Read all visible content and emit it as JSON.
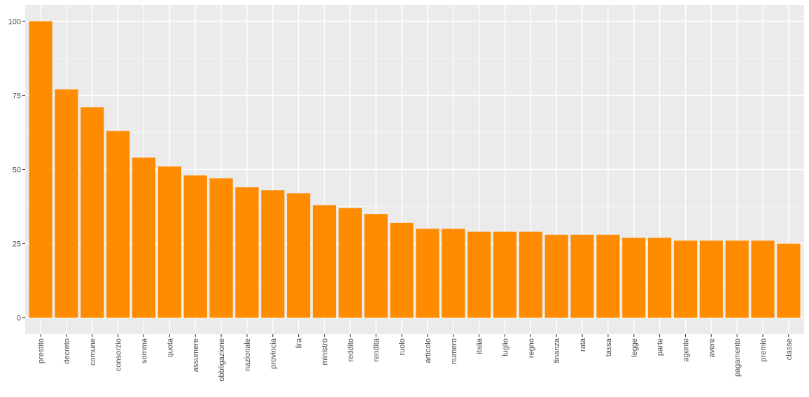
{
  "chart_data": {
    "type": "bar",
    "title": "",
    "xlabel": "",
    "ylabel": "",
    "ylim": [
      -5.5,
      105.5
    ],
    "yticks": [
      0,
      25,
      50,
      75,
      100
    ],
    "grid": true,
    "legend": "none",
    "colors": {
      "bar": "#FF8C00",
      "panel": "#EBEBEB",
      "grid_major": "#FFFFFF",
      "grid_minor": "#F5F5F5",
      "tick_text": "#4D4D4D",
      "tick_mark": "#333333"
    },
    "categories": [
      "prestito",
      "decreto",
      "comune",
      "consorzio",
      "somma",
      "quota",
      "assumere",
      "obbligazione",
      "nazionale",
      "provincia",
      "lira",
      "ministro",
      "reddito",
      "rendita",
      "ruolo",
      "articolo",
      "numero",
      "italia",
      "luglio",
      "regno",
      "finanza",
      "rata",
      "tassa",
      "legge",
      "parte",
      "agente",
      "avere",
      "pagamento",
      "premio",
      "classe"
    ],
    "values": [
      100,
      77,
      71,
      63,
      54,
      51,
      48,
      47,
      44,
      43,
      42,
      38,
      37,
      35,
      32,
      30,
      30,
      29,
      29,
      29,
      28,
      28,
      28,
      27,
      27,
      26,
      26,
      26,
      26,
      25
    ]
  }
}
